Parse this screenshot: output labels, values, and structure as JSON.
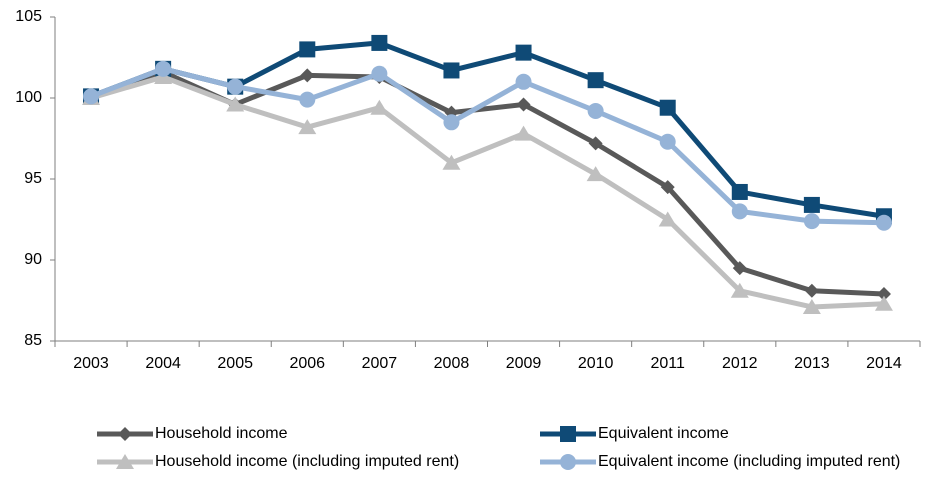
{
  "chart_data": {
    "type": "line",
    "categories": [
      "2003",
      "2004",
      "2005",
      "2006",
      "2007",
      "2008",
      "2009",
      "2010",
      "2011",
      "2012",
      "2013",
      "2014"
    ],
    "ylim": [
      85,
      105
    ],
    "yticks": [
      85,
      90,
      95,
      100,
      105
    ],
    "grid": false,
    "series": [
      {
        "name": "Household income",
        "color": "#595959",
        "marker": "diamond",
        "values": [
          100,
          101.6,
          99.6,
          101.4,
          101.3,
          99.1,
          99.6,
          97.2,
          94.5,
          89.5,
          88.1,
          87.9
        ]
      },
      {
        "name": "Equivalent income",
        "color": "#0f4a76",
        "marker": "square",
        "values": [
          100.1,
          101.8,
          100.7,
          103.0,
          103.4,
          101.7,
          102.8,
          101.1,
          99.4,
          94.2,
          93.4,
          92.7
        ]
      },
      {
        "name": "Household income (including imputed rent)",
        "color": "#bfbfbf",
        "marker": "triangle",
        "values": [
          100,
          101.3,
          99.6,
          98.2,
          99.4,
          96.0,
          97.8,
          95.3,
          92.5,
          88.1,
          87.1,
          87.3
        ]
      },
      {
        "name": "Equivalent income (including imputed rent)",
        "color": "#95b3d7",
        "marker": "circle",
        "values": [
          100.1,
          101.8,
          100.7,
          99.9,
          101.5,
          98.5,
          101.0,
          99.2,
          97.3,
          93.0,
          92.4,
          92.3
        ]
      }
    ]
  }
}
